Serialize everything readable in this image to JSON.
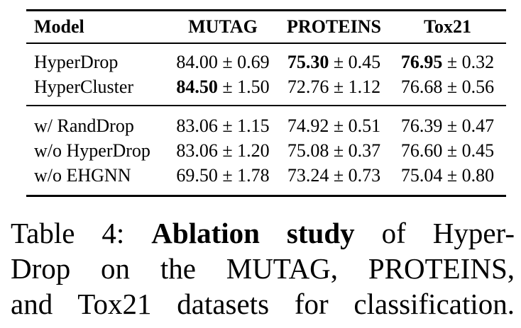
{
  "colors": {
    "text": "#000000",
    "background": "#ffffff"
  },
  "symbols": {
    "plus_minus": "±"
  },
  "table": {
    "columns": [
      "Model",
      "MUTAG",
      "PROTEINS",
      "Tox21"
    ],
    "groups": [
      {
        "rows": [
          {
            "model": "HyperDrop",
            "cells": [
              {
                "mean": "84.00",
                "std": "0.69",
                "bold": false
              },
              {
                "mean": "75.30",
                "std": "0.45",
                "bold": true
              },
              {
                "mean": "76.95",
                "std": "0.32",
                "bold": true
              }
            ]
          },
          {
            "model": "HyperCluster",
            "cells": [
              {
                "mean": "84.50",
                "std": "1.50",
                "bold": true
              },
              {
                "mean": "72.76",
                "std": "1.12",
                "bold": false
              },
              {
                "mean": "76.68",
                "std": "0.56",
                "bold": false
              }
            ]
          }
        ]
      },
      {
        "rows": [
          {
            "model": "w/ RandDrop",
            "cells": [
              {
                "mean": "83.06",
                "std": "1.15",
                "bold": false
              },
              {
                "mean": "74.92",
                "std": "0.51",
                "bold": false
              },
              {
                "mean": "76.39",
                "std": "0.47",
                "bold": false
              }
            ]
          },
          {
            "model": "w/o HyperDrop",
            "cells": [
              {
                "mean": "83.06",
                "std": "1.20",
                "bold": false
              },
              {
                "mean": "75.08",
                "std": "0.37",
                "bold": false
              },
              {
                "mean": "76.60",
                "std": "0.45",
                "bold": false
              }
            ]
          },
          {
            "model": "w/o EHGNN",
            "cells": [
              {
                "mean": "69.50",
                "std": "1.78",
                "bold": false
              },
              {
                "mean": "73.24",
                "std": "0.73",
                "bold": false
              },
              {
                "mean": "75.04",
                "std": "0.80",
                "bold": false
              }
            ]
          }
        ]
      }
    ]
  },
  "caption": {
    "line1_prefix": "Table 4:",
    "line1_bold": "Ablation study",
    "line1_suffix": "of Hyper-",
    "line2": "Drop on the MUTAG, PROTEINS,",
    "line3": "and Tox21 datasets for classification."
  }
}
